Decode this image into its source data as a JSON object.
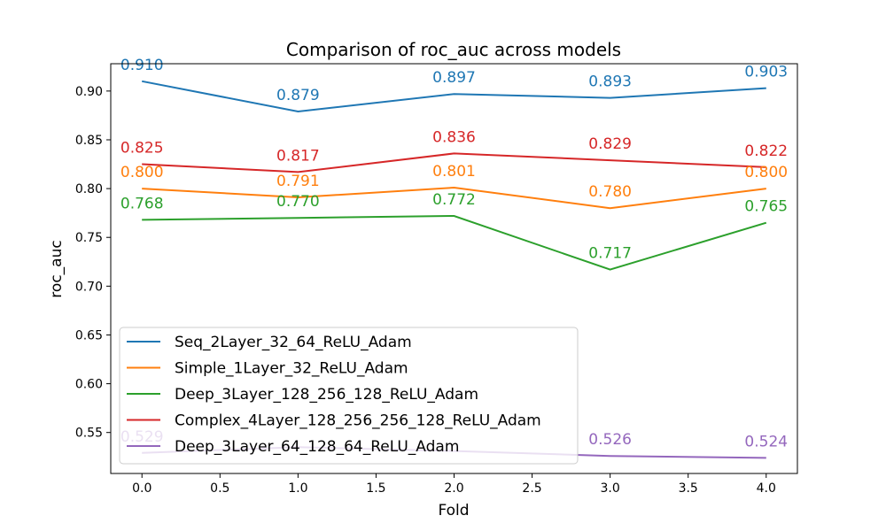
{
  "chart_data": {
    "type": "line",
    "title": "Comparison of roc_auc across models",
    "xlabel": "Fold",
    "ylabel": "roc_auc",
    "x": [
      0,
      1,
      2,
      3,
      4
    ],
    "xlim": [
      -0.2,
      4.2
    ],
    "ylim": [
      0.508,
      0.928
    ],
    "xticks": [
      "0.0",
      "0.5",
      "1.0",
      "1.5",
      "2.0",
      "2.5",
      "3.0",
      "3.5",
      "4.0"
    ],
    "yticks": [
      "0.55",
      "0.60",
      "0.65",
      "0.70",
      "0.75",
      "0.80",
      "0.85",
      "0.90"
    ],
    "grid": false,
    "legend_position": "lower-left",
    "series": [
      {
        "name": "Seq_2Layer_32_64_ReLU_Adam",
        "color": "#1f77b4",
        "values": [
          0.91,
          0.879,
          0.897,
          0.893,
          0.903
        ],
        "labels": [
          "0.910",
          "0.879",
          "0.897",
          "0.893",
          "0.903"
        ]
      },
      {
        "name": "Simple_1Layer_32_ReLU_Adam",
        "color": "#ff7f0e",
        "values": [
          0.8,
          0.791,
          0.801,
          0.78,
          0.8
        ],
        "labels": [
          "0.800",
          "0.791",
          "0.801",
          "0.780",
          "0.800"
        ]
      },
      {
        "name": "Deep_3Layer_128_256_128_ReLU_Adam",
        "color": "#2ca02c",
        "values": [
          0.768,
          0.77,
          0.772,
          0.717,
          0.765
        ],
        "labels": [
          "0.768",
          "0.770",
          "0.772",
          "0.717",
          "0.765"
        ]
      },
      {
        "name": "Complex_4Layer_128_256_256_128_ReLU_Adam",
        "color": "#d62728",
        "values": [
          0.825,
          0.817,
          0.836,
          0.829,
          0.822
        ],
        "labels": [
          "0.825",
          "0.817",
          "0.836",
          "0.829",
          "0.822"
        ]
      },
      {
        "name": "Deep_3Layer_64_128_64_ReLU_Adam",
        "color": "#9467bd",
        "values": [
          0.529,
          0.535,
          0.531,
          0.526,
          0.524
        ],
        "labels": [
          "0.529",
          "",
          "",
          "0.526",
          "0.524"
        ]
      }
    ]
  }
}
